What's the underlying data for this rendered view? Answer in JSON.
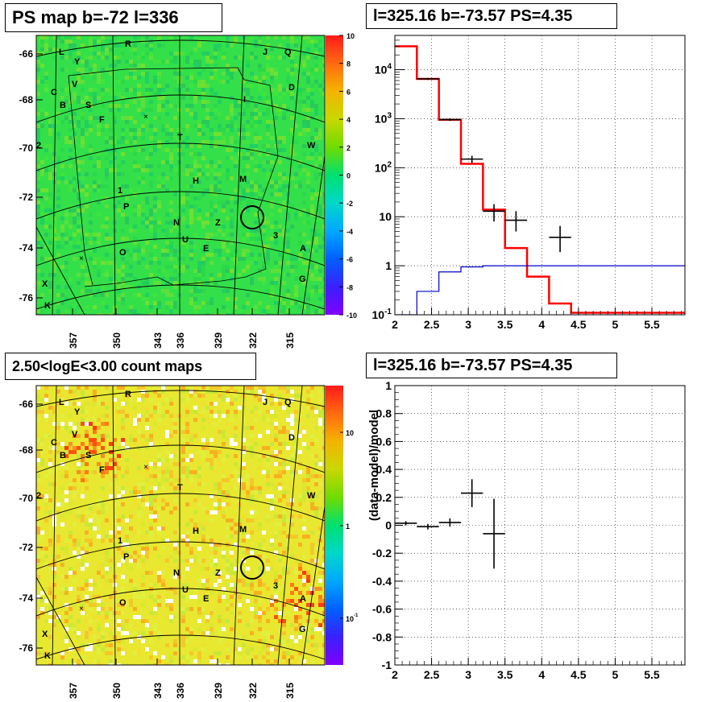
{
  "panels": {
    "tl": {
      "title": "PS map b=-72 l=336"
    },
    "tr": {
      "title": "l=325.16 b=-73.57 PS=4.35"
    },
    "bl": {
      "title": "2.50<logE<3.00 count maps"
    },
    "br": {
      "title": "l=325.16 b=-73.57 PS=4.35"
    }
  },
  "chart_data": [
    {
      "type": "heatmap",
      "panel": "tl",
      "title": "PS map b=-72 l=336",
      "x_tick_labels": [
        "357",
        "350",
        "343",
        "336",
        "329",
        "322",
        "315"
      ],
      "y_tick_labels": [
        "-66",
        "-68",
        "-70",
        "-72",
        "-74",
        "-76"
      ],
      "colorbar": {
        "min": -10,
        "max": 10,
        "tick_labels": [
          "10",
          "8",
          "6",
          "4",
          "2",
          "0",
          "-2",
          "-4",
          "-6",
          "-8",
          "-10"
        ]
      },
      "source_labels": [
        "R",
        "L",
        "Y",
        "J",
        "Q",
        "C",
        "V",
        "D",
        "B",
        "S",
        "I",
        "F",
        "2",
        "T",
        "W",
        "H",
        "M",
        "1",
        "P",
        "N",
        "Z",
        "3",
        "U",
        "E",
        "A",
        "O",
        "X",
        "G",
        "K"
      ]
    },
    {
      "type": "line",
      "panel": "tr",
      "title": "l=325.16 b=-73.57 PS=4.35",
      "xlim": [
        2,
        5.95
      ],
      "ylim": [
        0.1,
        50000
      ],
      "yscale": "log",
      "x_tick_labels": [
        "2",
        "2.5",
        "3",
        "3.5",
        "4",
        "4.5",
        "5",
        "5.5"
      ],
      "y_tick_labels": [
        "10^-1",
        "1",
        "10",
        "10^2",
        "10^3",
        "10^4"
      ],
      "grid": true,
      "series": [
        {
          "color": "#ff0000",
          "style": "step",
          "edges": [
            2,
            2.3,
            2.6,
            2.9,
            3.2,
            3.5,
            3.8,
            4.1,
            4.4,
            5.95
          ],
          "values": [
            30000,
            6500,
            950,
            120,
            14,
            2.3,
            0.6,
            0.17,
            0.11
          ]
        },
        {
          "color": "#0000cc",
          "style": "step",
          "edges": [
            2,
            2.3,
            2.6,
            2.9,
            3.2,
            5.95
          ],
          "values": [
            0.1,
            0.3,
            0.75,
            0.95,
            1.0
          ]
        },
        {
          "color": "#000000",
          "style": "points",
          "points": [
            {
              "x": 2.45,
              "xerr": 0.15,
              "y": 6500,
              "ylo": 6200,
              "yhi": 6800
            },
            {
              "x": 2.75,
              "xerr": 0.15,
              "y": 960,
              "ylo": 900,
              "yhi": 1020
            },
            {
              "x": 3.05,
              "xerr": 0.15,
              "y": 150,
              "ylo": 125,
              "yhi": 175
            },
            {
              "x": 3.35,
              "xerr": 0.15,
              "y": 13,
              "ylo": 8,
              "yhi": 18
            },
            {
              "x": 3.65,
              "xerr": 0.15,
              "y": 8.5,
              "ylo": 5,
              "yhi": 13
            },
            {
              "x": 4.25,
              "xerr": 0.15,
              "y": 3.8,
              "ylo": 1.9,
              "yhi": 6.5
            }
          ]
        }
      ]
    },
    {
      "type": "heatmap",
      "panel": "bl",
      "title": "2.50<logE<3.00 count maps",
      "x_tick_labels": [
        "357",
        "350",
        "343",
        "336",
        "329",
        "322",
        "315"
      ],
      "y_tick_labels": [
        "-66",
        "-68",
        "-70",
        "-72",
        "-74",
        "-76"
      ],
      "colorbar": {
        "scale": "log",
        "tick_labels": [
          "10",
          "1",
          "10^-1"
        ]
      },
      "source_labels": [
        "R",
        "L",
        "Y",
        "J",
        "Q",
        "C",
        "V",
        "D",
        "B",
        "S",
        "F",
        "2",
        "T",
        "W",
        "H",
        "M",
        "1",
        "P",
        "N",
        "Z",
        "3",
        "U",
        "E",
        "A",
        "O",
        "X",
        "G",
        "K"
      ]
    },
    {
      "type": "scatter",
      "panel": "br",
      "title": "l=325.16 b=-73.57 PS=4.35",
      "ylabel": "(data-model)/model",
      "xlim": [
        2,
        5.95
      ],
      "ylim": [
        -1,
        1
      ],
      "x_tick_labels": [
        "2",
        "2.5",
        "3",
        "3.5",
        "4",
        "4.5",
        "5",
        "5.5"
      ],
      "y_tick_labels": [
        "1",
        "0.8",
        "0.6",
        "0.4",
        "0.2",
        "0",
        "-0.2",
        "-0.4",
        "-0.6",
        "-0.8",
        "-1"
      ],
      "grid": true,
      "points": [
        {
          "x": 2.15,
          "xerr": 0.15,
          "y": 0.015,
          "ylo": 0.0,
          "yhi": 0.03
        },
        {
          "x": 2.45,
          "xerr": 0.15,
          "y": -0.01,
          "ylo": -0.03,
          "yhi": 0.01
        },
        {
          "x": 2.75,
          "xerr": 0.15,
          "y": 0.02,
          "ylo": -0.01,
          "yhi": 0.05
        },
        {
          "x": 3.05,
          "xerr": 0.15,
          "y": 0.23,
          "ylo": 0.13,
          "yhi": 0.33
        },
        {
          "x": 3.35,
          "xerr": 0.15,
          "y": -0.06,
          "ylo": -0.31,
          "yhi": 0.19
        }
      ]
    }
  ]
}
